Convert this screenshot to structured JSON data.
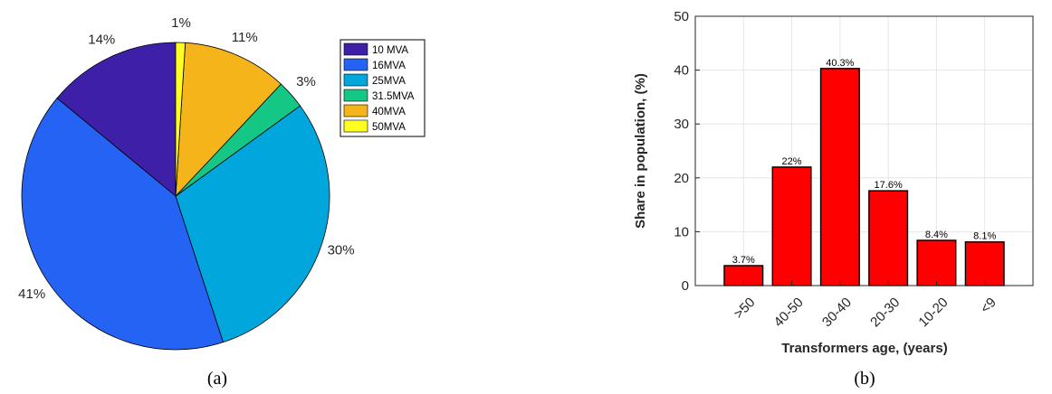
{
  "chart_data": [
    {
      "type": "pie",
      "panel_label": "(a)",
      "categories": [
        "10 MVA",
        "16MVA",
        "25MVA",
        "31.5MVA",
        "40MVA",
        "50MVA"
      ],
      "values": [
        14,
        41,
        30,
        3,
        11,
        1
      ],
      "value_labels": [
        "14%",
        "41%",
        "30%",
        "3%",
        "11%",
        "1%"
      ],
      "colors": [
        "#3e20a8",
        "#2563f5",
        "#00a6dc",
        "#15c785",
        "#f4b41a",
        "#ffff22"
      ],
      "legend_position": "top-right",
      "title": "",
      "xlabel": "",
      "ylabel": ""
    },
    {
      "type": "bar",
      "panel_label": "(b)",
      "categories": [
        ">50",
        "40-50",
        "30-40",
        "20-30",
        "10-20",
        "<9"
      ],
      "values": [
        3.7,
        22,
        40.3,
        17.6,
        8.4,
        8.1
      ],
      "value_labels": [
        "3.7%",
        "22%",
        "40.3%",
        "17.6%",
        "8.4%",
        "8.1%"
      ],
      "bar_color": "#ff0000",
      "xlabel": "Transformers age, (years)",
      "ylabel": "Share in population, (%)",
      "ylim": [
        0,
        50
      ],
      "yticks": [
        0,
        10,
        20,
        30,
        40,
        50
      ],
      "grid": true,
      "title": ""
    }
  ]
}
